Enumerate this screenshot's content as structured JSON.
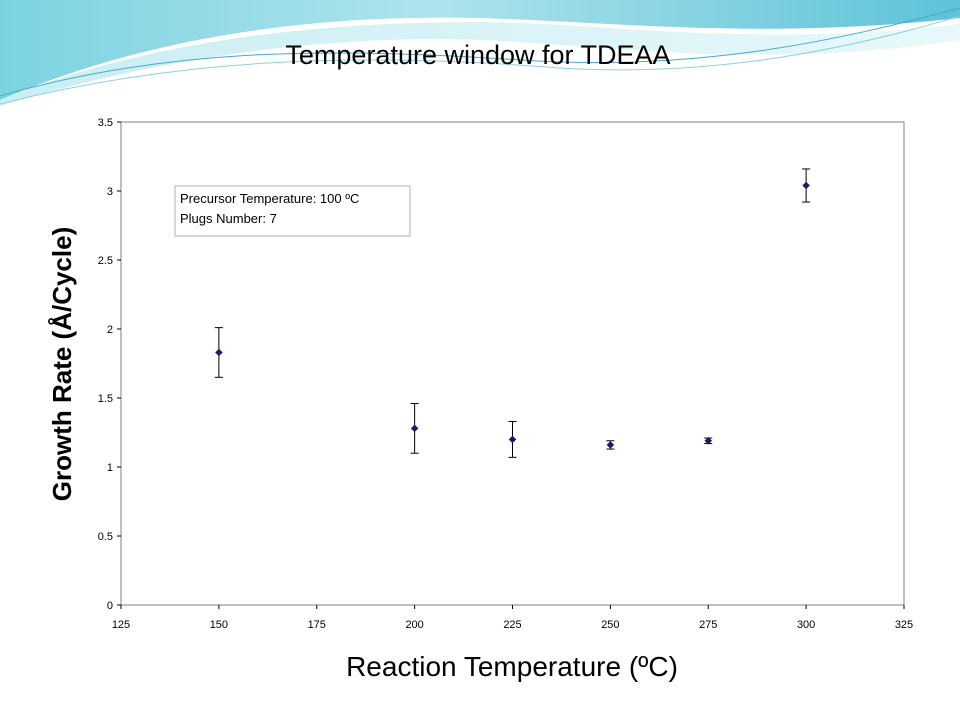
{
  "slide": {
    "title": "Temperature window for TDEAA"
  },
  "chart_data": {
    "type": "scatter",
    "title": "",
    "xlabel": "Reaction Temperature (ºC)",
    "ylabel": "Growth Rate (Å/Cycle)",
    "xlim": [
      125,
      325
    ],
    "ylim": [
      0,
      3.5
    ],
    "xticks": [
      125,
      150,
      175,
      200,
      225,
      250,
      275,
      300,
      325
    ],
    "yticks": [
      0,
      0.5,
      1,
      1.5,
      2,
      2.5,
      3,
      3.5
    ],
    "grid": false,
    "legend": "none",
    "marker_color": "#1a1a6e",
    "points": [
      {
        "x": 150,
        "y": 1.83,
        "err": 0.18
      },
      {
        "x": 200,
        "y": 1.28,
        "err": 0.18
      },
      {
        "x": 225,
        "y": 1.2,
        "err": 0.13
      },
      {
        "x": 250,
        "y": 1.16,
        "err": 0.03
      },
      {
        "x": 275,
        "y": 1.19,
        "err": 0.02
      },
      {
        "x": 300,
        "y": 3.04,
        "err": 0.12
      }
    ],
    "annotation": [
      "Precursor Temperature:  100 ºC",
      "Plugs Number:  7"
    ]
  }
}
